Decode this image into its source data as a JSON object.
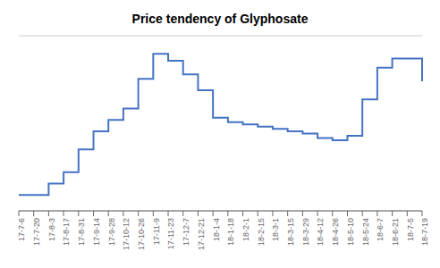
{
  "chart_data": {
    "type": "line",
    "title": "Price tendency of Glyphosate",
    "categories": [
      "17-7-6",
      "17-7-20",
      "17-8-3",
      "17-8-17",
      "17-8-31",
      "17-9-14",
      "17-9-28",
      "17-10-12",
      "17-10-26",
      "17-11-9",
      "17-11-23",
      "17-12-7",
      "17-12-21",
      "18-1-4",
      "18-1-18",
      "18-2-1",
      "18-2-15",
      "18-3-1",
      "18-3-15",
      "18-3-29",
      "18-4-12",
      "18-4-26",
      "18-5-10",
      "18-5-24",
      "18-6-7",
      "18-6-21",
      "18-7-5",
      "18-7-19"
    ],
    "values": [
      12,
      12,
      17,
      22,
      32,
      40,
      45,
      50,
      63,
      74,
      71,
      65,
      58,
      46,
      44,
      43,
      42,
      41,
      40,
      39,
      37,
      36,
      38,
      54,
      68,
      72,
      72,
      62
    ],
    "color": "#4472C4",
    "line_style": "step",
    "ylim": [
      5,
      82
    ],
    "yticks": [
      5,
      24.25,
      43.5,
      62.75,
      82
    ],
    "grid": true,
    "tick_labels": "x"
  }
}
